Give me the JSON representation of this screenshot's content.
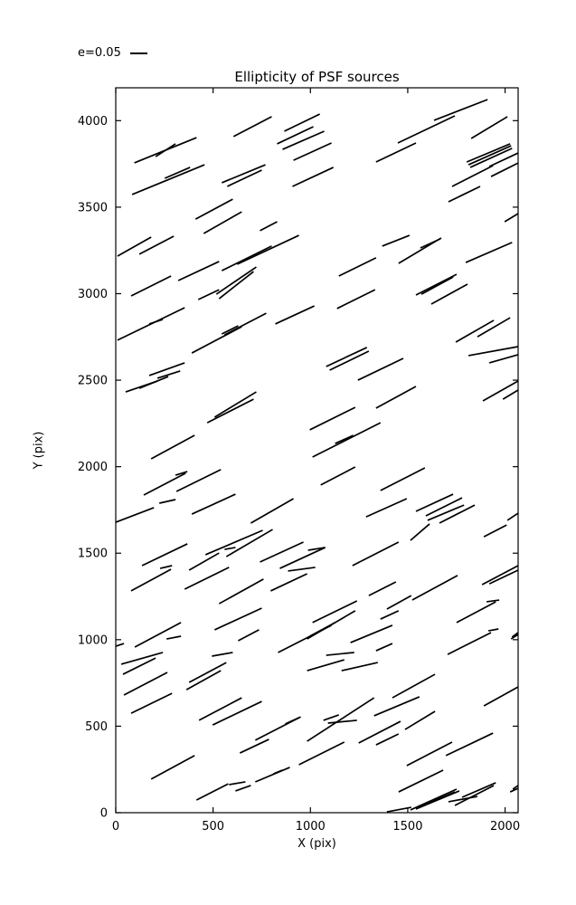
{
  "title": "Ellipticity of PSF sources",
  "legend": {
    "label": "e=0.05"
  },
  "chart_data": {
    "type": "quiver",
    "title": "Ellipticity of PSF sources",
    "xlabel": "X (pix)",
    "ylabel": "Y (pix)",
    "xlim": [
      0,
      2067
    ],
    "ylim": [
      0,
      4190
    ],
    "xticks": [
      0,
      500,
      1000,
      1500,
      2000
    ],
    "yticks": [
      0,
      500,
      1000,
      1500,
      2000,
      2500,
      3000,
      3500,
      4000
    ],
    "grid": false,
    "legend_position": "upper left (outside axes)",
    "line_color": "#000000",
    "segments": [
      [
        96,
        3756,
        415,
        3902
      ],
      [
        205,
        3792,
        307,
        3866
      ],
      [
        605,
        3908,
        801,
        4023
      ],
      [
        84,
        3573,
        456,
        3745
      ],
      [
        252,
        3667,
        382,
        3730
      ],
      [
        545,
        3641,
        769,
        3745
      ],
      [
        573,
        3620,
        750,
        3714
      ],
      [
        410,
        3431,
        601,
        3546
      ],
      [
        452,
        3348,
        647,
        3473
      ],
      [
        866,
        3939,
        1048,
        4038
      ],
      [
        829,
        3866,
        1015,
        3965
      ],
      [
        857,
        3834,
        1071,
        3939
      ],
      [
        913,
        3771,
        1108,
        3871
      ],
      [
        908,
        3620,
        1118,
        3730
      ],
      [
        741,
        3364,
        829,
        3416
      ],
      [
        1337,
        3761,
        1542,
        3871
      ],
      [
        1449,
        3871,
        1742,
        4028
      ],
      [
        1635,
        4002,
        1910,
        4122
      ],
      [
        1826,
        3897,
        2012,
        4023
      ],
      [
        1803,
        3761,
        2026,
        3866
      ],
      [
        1812,
        3745,
        2031,
        3855
      ],
      [
        1821,
        3730,
        2036,
        3840
      ],
      [
        1919,
        3735,
        2067,
        3813
      ],
      [
        1728,
        3620,
        1938,
        3740
      ],
      [
        1928,
        3677,
        2067,
        3755
      ],
      [
        1709,
        3531,
        1872,
        3620
      ],
      [
        1998,
        3416,
        2067,
        3463
      ],
      [
        9,
        3217,
        182,
        3327
      ],
      [
        121,
        3228,
        298,
        3332
      ],
      [
        79,
        2987,
        284,
        3102
      ],
      [
        321,
        3076,
        531,
        3186
      ],
      [
        424,
        2966,
        531,
        3023
      ],
      [
        9,
        2731,
        354,
        2919
      ],
      [
        172,
        2825,
        242,
        2851
      ],
      [
        391,
        2657,
        647,
        2809
      ],
      [
        545,
        2767,
        629,
        2814
      ],
      [
        545,
        3133,
        801,
        3275
      ],
      [
        624,
        3170,
        941,
        3337
      ],
      [
        517,
        2997,
        722,
        3154
      ],
      [
        531,
        2971,
        708,
        3128
      ],
      [
        1146,
        3102,
        1337,
        3207
      ],
      [
        1137,
        2914,
        1332,
        3023
      ],
      [
        559,
        2762,
        773,
        2887
      ],
      [
        820,
        2825,
        1020,
        2929
      ],
      [
        1081,
        2579,
        1290,
        2689
      ],
      [
        1099,
        2558,
        1300,
        2668
      ],
      [
        1369,
        3275,
        1509,
        3337
      ],
      [
        1453,
        3175,
        1672,
        3322
      ],
      [
        1565,
        3264,
        1668,
        3317
      ],
      [
        1798,
        3180,
        2036,
        3296
      ],
      [
        1542,
        2992,
        1751,
        3112
      ],
      [
        1570,
        2997,
        1733,
        3096
      ],
      [
        1621,
        2940,
        1807,
        3055
      ],
      [
        1747,
        2720,
        1942,
        2846
      ],
      [
        1858,
        2751,
        2026,
        2861
      ],
      [
        1812,
        2642,
        2067,
        2694
      ],
      [
        1919,
        2600,
        2067,
        2647
      ],
      [
        1244,
        2500,
        1477,
        2626
      ],
      [
        51,
        2432,
        214,
        2495
      ],
      [
        121,
        2453,
        270,
        2521
      ],
      [
        172,
        2527,
        354,
        2600
      ],
      [
        214,
        2511,
        331,
        2553
      ],
      [
        182,
        2045,
        405,
        2181
      ],
      [
        0,
        1679,
        196,
        1763
      ],
      [
        144,
        1836,
        359,
        1962
      ],
      [
        312,
        1857,
        540,
        1983
      ],
      [
        307,
        1951,
        368,
        1972
      ],
      [
        224,
        1789,
        307,
        1810
      ],
      [
        391,
        1726,
        615,
        1841
      ],
      [
        508,
        2286,
        722,
        2432
      ],
      [
        470,
        2254,
        708,
        2390
      ],
      [
        997,
        2213,
        1230,
        2343
      ],
      [
        1011,
        2056,
        1360,
        2254
      ],
      [
        1127,
        2134,
        1220,
        2181
      ],
      [
        1053,
        1894,
        1230,
        1998
      ],
      [
        694,
        1674,
        913,
        1815
      ],
      [
        1337,
        2338,
        1542,
        2464
      ],
      [
        1886,
        2380,
        2067,
        2495
      ],
      [
        1989,
        2390,
        2067,
        2443
      ],
      [
        1360,
        1862,
        1588,
        1993
      ],
      [
        1286,
        1710,
        1495,
        1815
      ],
      [
        1542,
        1742,
        1733,
        1841
      ],
      [
        1593,
        1716,
        1779,
        1820
      ],
      [
        1602,
        1690,
        1789,
        1778
      ],
      [
        1663,
        1674,
        1844,
        1778
      ],
      [
        2012,
        1690,
        2067,
        1731
      ],
      [
        135,
        1428,
        368,
        1554
      ],
      [
        79,
        1282,
        284,
        1407
      ],
      [
        228,
        1412,
        289,
        1428
      ],
      [
        377,
        1402,
        531,
        1501
      ],
      [
        461,
        1491,
        755,
        1632
      ],
      [
        568,
        1480,
        806,
        1637
      ],
      [
        559,
        1522,
        615,
        1533
      ],
      [
        354,
        1292,
        582,
        1418
      ],
      [
        98,
        957,
        335,
        1099
      ],
      [
        261,
        1004,
        335,
        1020
      ],
      [
        28,
        858,
        242,
        926
      ],
      [
        37,
        800,
        205,
        894
      ],
      [
        0,
        962,
        42,
        978
      ],
      [
        494,
        905,
        601,
        926
      ],
      [
        531,
        1208,
        759,
        1350
      ],
      [
        508,
        1057,
        750,
        1182
      ],
      [
        741,
        1449,
        964,
        1564
      ],
      [
        843,
        1412,
        1076,
        1533
      ],
      [
        988,
        1517,
        1076,
        1533
      ],
      [
        885,
        1397,
        1025,
        1418
      ],
      [
        1216,
        1428,
        1453,
        1564
      ],
      [
        796,
        1282,
        983,
        1381
      ],
      [
        629,
        994,
        736,
        1057
      ],
      [
        1300,
        1255,
        1439,
        1334
      ],
      [
        834,
        926,
        1108,
        1083
      ],
      [
        983,
        1004,
        1230,
        1167
      ],
      [
        997,
        1020,
        1127,
        1099
      ],
      [
        1011,
        1099,
        1239,
        1224
      ],
      [
        1081,
        910,
        1225,
        926
      ],
      [
        983,
        821,
        1174,
        884
      ],
      [
        1160,
        821,
        1346,
        868
      ],
      [
        1206,
        983,
        1421,
        1083
      ],
      [
        1514,
        1574,
        1612,
        1669
      ],
      [
        1891,
        1595,
        2008,
        1663
      ],
      [
        1523,
        1229,
        1756,
        1371
      ],
      [
        1360,
        1119,
        1453,
        1167
      ],
      [
        1393,
        1177,
        1518,
        1255
      ],
      [
        1882,
        1318,
        2067,
        1428
      ],
      [
        1919,
        1323,
        2067,
        1402
      ],
      [
        1905,
        1219,
        1970,
        1229
      ],
      [
        1751,
        1099,
        1952,
        1219
      ],
      [
        2031,
        1004,
        2067,
        1030
      ],
      [
        2036,
        1015,
        2067,
        1041
      ],
      [
        1914,
        1051,
        1966,
        1062
      ],
      [
        1705,
        915,
        1928,
        1041
      ],
      [
        1337,
        936,
        1421,
        978
      ],
      [
        42,
        680,
        265,
        811
      ],
      [
        79,
        575,
        289,
        690
      ],
      [
        363,
        711,
        540,
        821
      ],
      [
        377,
        753,
        568,
        868
      ],
      [
        428,
        534,
        647,
        664
      ],
      [
        182,
        194,
        405,
        330
      ],
      [
        415,
        73,
        578,
        167
      ],
      [
        582,
        162,
        666,
        178
      ],
      [
        498,
        507,
        750,
        643
      ],
      [
        615,
        126,
        694,
        157
      ],
      [
        717,
        419,
        950,
        554
      ],
      [
        871,
        513,
        941,
        549
      ],
      [
        983,
        413,
        1327,
        664
      ],
      [
        1067,
        534,
        1146,
        565
      ],
      [
        1090,
        518,
        1239,
        534
      ],
      [
        638,
        345,
        787,
        424
      ],
      [
        941,
        277,
        1174,
        408
      ],
      [
        810,
        225,
        857,
        246
      ],
      [
        717,
        178,
        894,
        262
      ],
      [
        1421,
        664,
        1640,
        800
      ],
      [
        1327,
        560,
        1560,
        670
      ],
      [
        1248,
        403,
        1463,
        528
      ],
      [
        1337,
        392,
        1453,
        455
      ],
      [
        1486,
        481,
        1640,
        586
      ],
      [
        1891,
        617,
        2067,
        727
      ],
      [
        1696,
        330,
        1938,
        460
      ],
      [
        1495,
        272,
        1728,
        408
      ],
      [
        1453,
        120,
        1682,
        246
      ],
      [
        1514,
        16,
        1751,
        136
      ],
      [
        1542,
        21,
        1765,
        126
      ],
      [
        1556,
        31,
        1742,
        120
      ],
      [
        1742,
        42,
        1942,
        157
      ],
      [
        1779,
        89,
        1952,
        173
      ],
      [
        1709,
        63,
        1858,
        94
      ],
      [
        1393,
        5,
        1518,
        31
      ],
      [
        2026,
        120,
        2067,
        141
      ],
      [
        2040,
        136,
        2067,
        157
      ]
    ]
  }
}
